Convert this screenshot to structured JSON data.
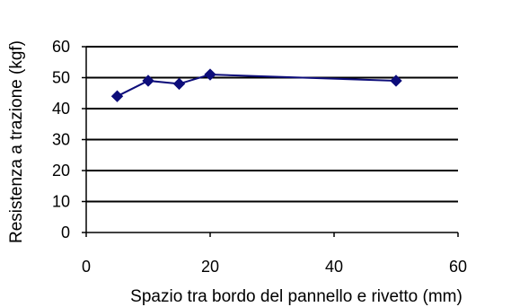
{
  "chart_data": {
    "type": "line",
    "title": "",
    "xlabel": "Spazio tra bordo del pannello e rivetto (mm)",
    "ylabel": "Resistenza a trazione (kgf)",
    "xlim": [
      0,
      60
    ],
    "ylim": [
      0,
      60
    ],
    "x_ticks": [
      "0",
      "20",
      "40",
      "60"
    ],
    "y_ticks": [
      "0",
      "10",
      "20",
      "30",
      "40",
      "50",
      "60"
    ],
    "grid": "horizontal",
    "legend": "none",
    "series": [
      {
        "marker": "diamond",
        "color": "#0d0d7a",
        "points": [
          {
            "x": 5,
            "y": 44
          },
          {
            "x": 10,
            "y": 49
          },
          {
            "x": 15,
            "y": 48
          },
          {
            "x": 20,
            "y": 51
          },
          {
            "x": 50,
            "y": 49
          }
        ]
      }
    ]
  }
}
